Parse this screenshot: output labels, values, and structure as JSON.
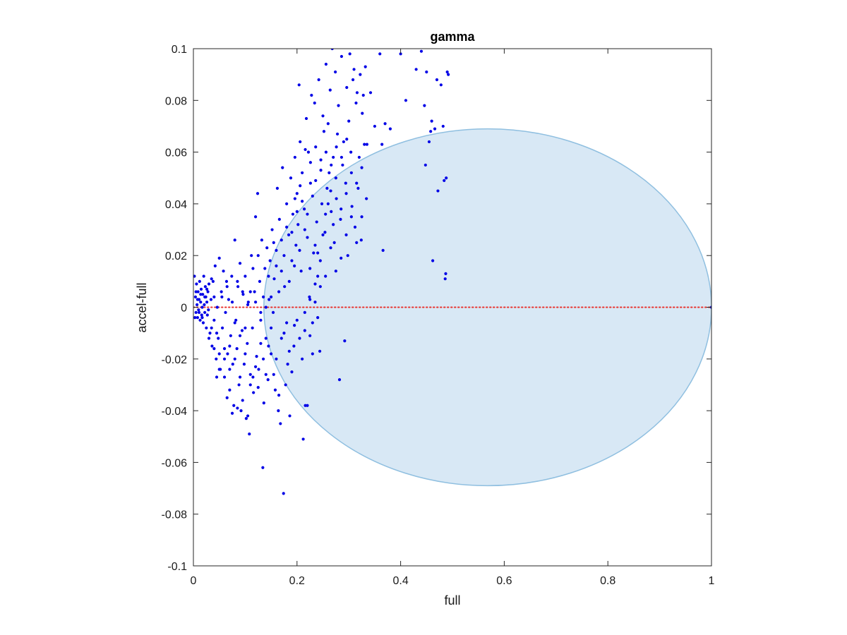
{
  "chart_data": {
    "type": "scatter",
    "title": "gamma",
    "xlabel": "full",
    "ylabel": "accel-full",
    "xlim": [
      0,
      1
    ],
    "ylim": [
      -0.1,
      0.1
    ],
    "xticks": [
      0,
      0.2,
      0.4,
      0.6,
      0.8,
      1
    ],
    "xtick_labels": [
      "0",
      "0.2",
      "0.4",
      "0.6",
      "0.8",
      "1"
    ],
    "yticks": [
      -0.1,
      -0.08,
      -0.06,
      -0.04,
      -0.02,
      0,
      0.02,
      0.04,
      0.06,
      0.08,
      0.1
    ],
    "ytick_labels": [
      "-0.1",
      "-0.08",
      "-0.06",
      "-0.04",
      "-0.02",
      "0",
      "0.02",
      "0.04",
      "0.06",
      "0.08",
      "0.1"
    ],
    "grid": false,
    "reference_line": {
      "y": 0,
      "color": "#e8322d",
      "style": "dotted"
    },
    "region": {
      "shape": "ellipse",
      "center": [
        0.568,
        0
      ],
      "radius_x": 0.432,
      "radius_y": 0.069,
      "fill": "#d8e8f5",
      "stroke": "#8fbfe0"
    },
    "points_color": "#0000e6",
    "points": [
      [
        0.002,
        0.012
      ],
      [
        0.004,
        0.004
      ],
      [
        0.005,
        -0.002
      ],
      [
        0.006,
        0.009
      ],
      [
        0.007,
        0.001
      ],
      [
        0.008,
        -0.004
      ],
      [
        0.009,
        0.006
      ],
      [
        0.01,
        -0.001
      ],
      [
        0.011,
        0.003
      ],
      [
        0.012,
        0.01
      ],
      [
        0.013,
        -0.005
      ],
      [
        0.014,
        0.002
      ],
      [
        0.015,
        0.007
      ],
      [
        0.016,
        -0.003
      ],
      [
        0.017,
        0.0
      ],
      [
        0.018,
        0.005
      ],
      [
        0.019,
        -0.006
      ],
      [
        0.02,
        0.012
      ],
      [
        0.021,
        0.001
      ],
      [
        0.022,
        -0.002
      ],
      [
        0.023,
        0.008
      ],
      [
        0.024,
        0.004
      ],
      [
        0.025,
        -0.008
      ],
      [
        0.026,
        0.002
      ],
      [
        0.027,
        -0.003
      ],
      [
        0.028,
        0.006
      ],
      [
        0.029,
        -0.001
      ],
      [
        0.03,
        0.009
      ],
      [
        0.003,
        -0.004
      ],
      [
        0.005,
        0.006
      ],
      [
        0.008,
        0.003
      ],
      [
        0.011,
        -0.002
      ],
      [
        0.014,
        0.005
      ],
      [
        0.017,
        -0.004
      ],
      [
        0.022,
        0.004
      ],
      [
        0.026,
        0.007
      ],
      [
        0.032,
        -0.01
      ],
      [
        0.034,
        0.003
      ],
      [
        0.036,
        -0.015
      ],
      [
        0.038,
        0.01
      ],
      [
        0.04,
        -0.005
      ],
      [
        0.042,
        0.016
      ],
      [
        0.044,
        -0.02
      ],
      [
        0.046,
        0.0
      ],
      [
        0.048,
        -0.012
      ],
      [
        0.05,
        0.019
      ],
      [
        0.052,
        -0.024
      ],
      [
        0.054,
        0.006
      ],
      [
        0.056,
        -0.008
      ],
      [
        0.058,
        0.014
      ],
      [
        0.06,
        -0.027
      ],
      [
        0.062,
        -0.002
      ],
      [
        0.064,
        0.01
      ],
      [
        0.066,
        -0.018
      ],
      [
        0.068,
        0.003
      ],
      [
        0.07,
        -0.032
      ],
      [
        0.072,
        -0.011
      ],
      [
        0.074,
        0.012
      ],
      [
        0.076,
        -0.022
      ],
      [
        0.078,
        -0.038
      ],
      [
        0.08,
        0.026
      ],
      [
        0.082,
        -0.005
      ],
      [
        0.084,
        -0.016
      ],
      [
        0.086,
        0.008
      ],
      [
        0.088,
        -0.03
      ],
      [
        0.09,
        0.017
      ],
      [
        0.092,
        -0.04
      ],
      [
        0.094,
        -0.009
      ],
      [
        0.096,
        0.005
      ],
      [
        0.098,
        -0.022
      ],
      [
        0.1,
        0.012
      ],
      [
        0.102,
        -0.043
      ],
      [
        0.104,
        -0.014
      ],
      [
        0.106,
        0.002
      ],
      [
        0.108,
        -0.049
      ],
      [
        0.11,
        -0.026
      ],
      [
        0.112,
        0.02
      ],
      [
        0.114,
        -0.008
      ],
      [
        0.116,
        -0.033
      ],
      [
        0.118,
        0.006
      ],
      [
        0.12,
        0.035
      ],
      [
        0.122,
        -0.019
      ],
      [
        0.124,
        0.044
      ],
      [
        0.126,
        -0.024
      ],
      [
        0.128,
        0.01
      ],
      [
        0.13,
        -0.005
      ],
      [
        0.132,
        0.026
      ],
      [
        0.134,
        -0.062
      ],
      [
        0.136,
        -0.037
      ],
      [
        0.138,
        0.015
      ],
      [
        0.14,
        -0.012
      ],
      [
        0.142,
        0.023
      ],
      [
        0.144,
        -0.028
      ],
      [
        0.146,
        0.003
      ],
      [
        0.148,
        0.018
      ],
      [
        0.15,
        -0.018
      ],
      [
        0.152,
        0.03
      ],
      [
        0.154,
        -0.002
      ],
      [
        0.156,
        0.011
      ],
      [
        0.158,
        -0.032
      ],
      [
        0.16,
        0.022
      ],
      [
        0.162,
        0.046
      ],
      [
        0.164,
        -0.04
      ],
      [
        0.166,
        0.034
      ],
      [
        0.168,
        -0.045
      ],
      [
        0.17,
        0.014
      ],
      [
        0.172,
        0.054
      ],
      [
        0.174,
        -0.072
      ],
      [
        0.176,
        0.008
      ],
      [
        0.178,
        -0.03
      ],
      [
        0.18,
        0.04
      ],
      [
        0.182,
        -0.022
      ],
      [
        0.184,
        0.028
      ],
      [
        0.186,
        -0.042
      ],
      [
        0.188,
        0.05
      ],
      [
        0.19,
        0.018
      ],
      [
        0.192,
        0.036
      ],
      [
        0.194,
        -0.015
      ],
      [
        0.196,
        0.058
      ],
      [
        0.198,
        0.024
      ],
      [
        0.2,
        0.044
      ],
      [
        0.202,
        0.032
      ],
      [
        0.204,
        0.086
      ],
      [
        0.206,
        0.064
      ],
      [
        0.208,
        0.014
      ],
      [
        0.21,
        0.052
      ],
      [
        0.212,
        -0.051
      ],
      [
        0.214,
        0.038
      ],
      [
        0.216,
        -0.038
      ],
      [
        0.218,
        0.073
      ],
      [
        0.22,
        0.027
      ],
      [
        0.222,
        0.06
      ],
      [
        0.224,
        0.004
      ],
      [
        0.226,
        0.048
      ],
      [
        0.228,
        0.082
      ],
      [
        0.23,
        -0.006
      ],
      [
        0.232,
        0.021
      ],
      [
        0.234,
        0.079
      ],
      [
        0.236,
        0.062
      ],
      [
        0.238,
        0.033
      ],
      [
        0.24,
        0.012
      ],
      [
        0.242,
        0.088
      ],
      [
        0.244,
        -0.017
      ],
      [
        0.246,
        0.057
      ],
      [
        0.248,
        0.04
      ],
      [
        0.25,
        0.074
      ],
      [
        0.252,
        0.068
      ],
      [
        0.254,
        0.029
      ],
      [
        0.256,
        0.094
      ],
      [
        0.258,
        0.046
      ],
      [
        0.26,
        0.071
      ],
      [
        0.262,
        0.052
      ],
      [
        0.264,
        0.084
      ],
      [
        0.266,
        0.037
      ],
      [
        0.268,
        0.1
      ],
      [
        0.27,
        0.058
      ],
      [
        0.272,
        0.025
      ],
      [
        0.274,
        0.091
      ],
      [
        0.276,
        0.042
      ],
      [
        0.278,
        0.067
      ],
      [
        0.28,
        0.078
      ],
      [
        0.282,
        -0.028
      ],
      [
        0.284,
        0.034
      ],
      [
        0.286,
        0.097
      ],
      [
        0.288,
        0.055
      ],
      [
        0.29,
        0.064
      ],
      [
        0.292,
        -0.013
      ],
      [
        0.294,
        0.048
      ],
      [
        0.296,
        0.085
      ],
      [
        0.298,
        0.02
      ],
      [
        0.3,
        0.072
      ],
      [
        0.302,
        0.098
      ],
      [
        0.304,
        0.06
      ],
      [
        0.306,
        0.039
      ],
      [
        0.308,
        0.088
      ],
      [
        0.31,
        0.092
      ],
      [
        0.312,
        0.031
      ],
      [
        0.314,
        0.079
      ],
      [
        0.316,
        0.083
      ],
      [
        0.318,
        0.046
      ],
      [
        0.32,
        0.058
      ],
      [
        0.322,
        0.09
      ],
      [
        0.324,
        0.026
      ],
      [
        0.326,
        0.075
      ],
      [
        0.328,
        0.082
      ],
      [
        0.33,
        0.063
      ],
      [
        0.332,
        0.093
      ],
      [
        0.334,
        0.042
      ],
      [
        0.342,
        0.083
      ],
      [
        0.35,
        0.07
      ],
      [
        0.36,
        0.098
      ],
      [
        0.364,
        0.063
      ],
      [
        0.366,
        0.022
      ],
      [
        0.37,
        0.071
      ],
      [
        0.38,
        0.069
      ],
      [
        0.4,
        0.098
      ],
      [
        0.41,
        0.08
      ],
      [
        0.43,
        0.092
      ],
      [
        0.44,
        0.099
      ],
      [
        0.446,
        0.078
      ],
      [
        0.448,
        0.055
      ],
      [
        0.45,
        0.091
      ],
      [
        0.455,
        0.064
      ],
      [
        0.458,
        0.068
      ],
      [
        0.46,
        0.072
      ],
      [
        0.462,
        0.018
      ],
      [
        0.466,
        0.069
      ],
      [
        0.47,
        0.088
      ],
      [
        0.472,
        0.045
      ],
      [
        0.478,
        0.086
      ],
      [
        0.482,
        0.07
      ],
      [
        0.484,
        0.049
      ],
      [
        0.486,
        0.011
      ],
      [
        0.487,
        0.013
      ],
      [
        0.488,
        0.05
      ],
      [
        0.49,
        0.091
      ],
      [
        0.492,
        0.09
      ],
      [
        0.2,
        -0.005
      ],
      [
        0.21,
        -0.02
      ],
      [
        0.215,
        -0.009
      ],
      [
        0.22,
        -0.038
      ],
      [
        0.225,
        -0.011
      ],
      [
        0.23,
        -0.018
      ],
      [
        0.235,
        0.002
      ],
      [
        0.24,
        -0.004
      ],
      [
        0.19,
        -0.025
      ],
      [
        0.18,
        -0.006
      ],
      [
        0.17,
        -0.012
      ],
      [
        0.16,
        -0.02
      ],
      [
        0.15,
        -0.008
      ],
      [
        0.14,
        -0.026
      ],
      [
        0.13,
        -0.014
      ],
      [
        0.12,
        -0.023
      ],
      [
        0.11,
        -0.03
      ],
      [
        0.1,
        -0.018
      ],
      [
        0.09,
        -0.027
      ],
      [
        0.08,
        -0.02
      ],
      [
        0.07,
        -0.015
      ],
      [
        0.06,
        -0.02
      ],
      [
        0.05,
        -0.018
      ],
      [
        0.045,
        -0.01
      ],
      [
        0.04,
        -0.016
      ],
      [
        0.035,
        -0.008
      ],
      [
        0.055,
        0.004
      ],
      [
        0.065,
        0.008
      ],
      [
        0.075,
        0.002
      ],
      [
        0.085,
        0.01
      ],
      [
        0.095,
        0.006
      ],
      [
        0.105,
        0.001
      ],
      [
        0.115,
        0.015
      ],
      [
        0.125,
        0.02
      ],
      [
        0.135,
        0.004
      ],
      [
        0.145,
        0.012
      ],
      [
        0.155,
        0.025
      ],
      [
        0.165,
        0.006
      ],
      [
        0.175,
        0.02
      ],
      [
        0.185,
        0.01
      ],
      [
        0.195,
        0.016
      ],
      [
        0.205,
        0.022
      ],
      [
        0.215,
        0.03
      ],
      [
        0.225,
        0.015
      ],
      [
        0.235,
        0.024
      ],
      [
        0.245,
        0.008
      ],
      [
        0.255,
        0.036
      ],
      [
        0.265,
        0.045
      ],
      [
        0.275,
        0.05
      ],
      [
        0.285,
        0.038
      ],
      [
        0.295,
        0.044
      ],
      [
        0.305,
        0.052
      ],
      [
        0.315,
        0.048
      ],
      [
        0.325,
        0.054
      ],
      [
        0.335,
        0.063
      ],
      [
        0.27,
        0.032
      ],
      [
        0.26,
        0.04
      ],
      [
        0.25,
        0.028
      ],
      [
        0.24,
        0.021
      ],
      [
        0.23,
        0.043
      ],
      [
        0.22,
        0.036
      ],
      [
        0.21,
        0.041
      ],
      [
        0.2,
        0.037
      ],
      [
        0.19,
        0.029
      ],
      [
        0.18,
        0.031
      ],
      [
        0.17,
        0.026
      ],
      [
        0.16,
        0.016
      ],
      [
        0.15,
        0.004
      ],
      [
        0.14,
        0.0
      ],
      [
        0.13,
        -0.002
      ],
      [
        0.12,
        0.002
      ],
      [
        0.11,
        0.006
      ],
      [
        0.1,
        -0.008
      ],
      [
        0.09,
        -0.011
      ],
      [
        0.08,
        -0.006
      ],
      [
        0.07,
        -0.024
      ],
      [
        0.06,
        -0.016
      ],
      [
        0.05,
        -0.024
      ],
      [
        0.045,
        -0.027
      ],
      [
        0.04,
        0.004
      ],
      [
        0.035,
        0.011
      ],
      [
        0.03,
        -0.012
      ],
      [
        0.065,
        -0.035
      ],
      [
        0.075,
        -0.041
      ],
      [
        0.085,
        -0.039
      ],
      [
        0.095,
        -0.036
      ],
      [
        0.105,
        -0.042
      ],
      [
        0.115,
        -0.027
      ],
      [
        0.125,
        -0.031
      ],
      [
        0.135,
        -0.02
      ],
      [
        0.145,
        -0.015
      ],
      [
        0.155,
        -0.026
      ],
      [
        0.165,
        -0.034
      ],
      [
        0.175,
        -0.01
      ],
      [
        0.185,
        -0.017
      ],
      [
        0.195,
        -0.007
      ],
      [
        0.205,
        -0.012
      ],
      [
        0.215,
        -0.002
      ],
      [
        0.225,
        0.003
      ],
      [
        0.235,
        0.009
      ],
      [
        0.245,
        0.018
      ],
      [
        0.255,
        0.012
      ],
      [
        0.265,
        0.023
      ],
      [
        0.275,
        0.014
      ],
      [
        0.285,
        0.019
      ],
      [
        0.295,
        0.028
      ],
      [
        0.305,
        0.035
      ],
      [
        0.315,
        0.025
      ],
      [
        0.325,
        0.035
      ],
      [
        0.296,
        0.065
      ],
      [
        0.286,
        0.058
      ],
      [
        0.276,
        0.062
      ],
      [
        0.266,
        0.055
      ],
      [
        0.256,
        0.06
      ],
      [
        0.246,
        0.053
      ],
      [
        0.236,
        0.049
      ],
      [
        0.226,
        0.056
      ],
      [
        0.216,
        0.061
      ],
      [
        0.206,
        0.047
      ],
      [
        0.196,
        0.042
      ],
      [
        1.0,
        0.0
      ]
    ]
  }
}
